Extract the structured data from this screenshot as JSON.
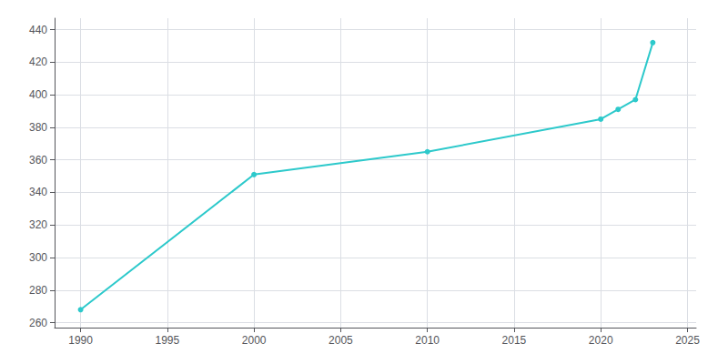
{
  "chart_data": {
    "type": "line",
    "x": [
      1990,
      2000,
      2010,
      2020,
      2021,
      2022,
      2023
    ],
    "values": [
      268,
      351,
      365,
      385,
      391,
      397,
      432
    ],
    "color": "#2DC9CB",
    "marker": "circle",
    "xlim": [
      1988.5,
      2025.5
    ],
    "ylim": [
      257,
      447
    ],
    "xticks": [
      1990,
      1995,
      2000,
      2005,
      2010,
      2015,
      2020,
      2025
    ],
    "yticks": [
      260,
      280,
      300,
      320,
      340,
      360,
      380,
      400,
      420,
      440
    ],
    "grid": true
  }
}
